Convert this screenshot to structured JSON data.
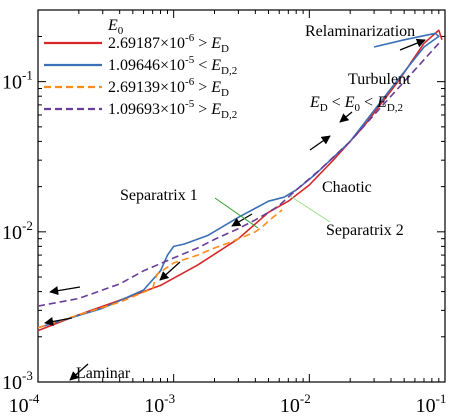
{
  "chart_data": {
    "type": "line",
    "xscale": "log",
    "yscale": "log",
    "xlim": [
      0.0001,
      0.1
    ],
    "ylim": [
      0.001,
      0.3
    ],
    "x_ticks": [
      {
        "value": 0.0001,
        "base": "10",
        "exp": "-4"
      },
      {
        "value": 0.001,
        "base": "10",
        "exp": "-3"
      },
      {
        "value": 0.01,
        "base": "10",
        "exp": "-2"
      },
      {
        "value": 0.1,
        "base": "10",
        "exp": "-1"
      }
    ],
    "y_ticks": [
      {
        "value": 0.001,
        "base": "10",
        "exp": "-3"
      },
      {
        "value": 0.01,
        "base": "10",
        "exp": "-2"
      },
      {
        "value": 0.1,
        "base": "10",
        "exp": "-1"
      }
    ],
    "grid": false,
    "legend": {
      "position": "top-left",
      "title": "E0",
      "entries": [
        {
          "coef": "2.69187",
          "exp": "-6",
          "rel": ">",
          "sym": "ED",
          "sub": "",
          "color": "#d62728",
          "dash": "solid"
        },
        {
          "coef": "1.09646",
          "exp": "-5",
          "rel": "<",
          "sym": "ED,2",
          "sub": "",
          "color": "#3b6fb6",
          "dash": "solid"
        },
        {
          "coef": "2.69139",
          "exp": "-6",
          "rel": ">",
          "sym": "ED",
          "sub": "",
          "color": "#ff8c1a",
          "dash": "dashed"
        },
        {
          "coef": "1.09693",
          "exp": "-5",
          "rel": ">",
          "sym": "ED,2",
          "sub": "",
          "color": "#6a3d9a",
          "dash": "dashed"
        }
      ]
    },
    "series": [
      {
        "color": "#d62728",
        "dash": "solid",
        "x": [
          0.0001,
          0.0002,
          0.0004,
          0.0008,
          0.0015,
          0.003,
          0.005,
          0.007,
          0.01,
          0.015,
          0.025,
          0.045,
          0.07,
          0.09,
          0.095
        ],
        "y": [
          0.0022,
          0.0028,
          0.0035,
          0.0044,
          0.006,
          0.009,
          0.0135,
          0.016,
          0.0205,
          0.03,
          0.05,
          0.1,
          0.18,
          0.22,
          0.19
        ]
      },
      {
        "color": "#3b6fb6",
        "dash": "solid",
        "x": [
          0.0001,
          0.0003,
          0.0006,
          0.0008,
          0.0009,
          0.001,
          0.0012,
          0.0018,
          0.003,
          0.005,
          0.0065,
          0.008,
          0.011,
          0.02,
          0.04,
          0.07,
          0.09,
          0.085,
          0.05,
          0.03
        ],
        "y": [
          0.0023,
          0.0031,
          0.0041,
          0.0055,
          0.007,
          0.008,
          0.0083,
          0.0095,
          0.0125,
          0.016,
          0.017,
          0.019,
          0.024,
          0.04,
          0.09,
          0.17,
          0.2,
          0.21,
          0.19,
          0.17
        ]
      },
      {
        "color": "#ff8c1a",
        "dash": "dashed",
        "x": [
          0.0001,
          0.0002,
          0.0004,
          0.0007,
          0.00075,
          0.001,
          0.0015,
          0.002,
          0.0025,
          0.003,
          0.0035,
          0.004,
          0.0045,
          0.005,
          0.006,
          0.0063
        ],
        "y": [
          0.0023,
          0.0028,
          0.0034,
          0.0042,
          0.0052,
          0.0062,
          0.007,
          0.0078,
          0.0084,
          0.009,
          0.0095,
          0.01,
          0.0108,
          0.0118,
          0.0135,
          0.014
        ]
      },
      {
        "color": "#6a3d9a",
        "dash": "dashed",
        "x": [
          0.0001,
          0.0002,
          0.0004,
          0.0006,
          0.001,
          0.0015,
          0.002,
          0.003,
          0.004,
          0.005,
          0.006,
          0.008,
          0.012,
          0.02,
          0.035,
          0.06,
          0.09
        ],
        "y": [
          0.0032,
          0.0036,
          0.0045,
          0.0055,
          0.0067,
          0.0078,
          0.0089,
          0.0105,
          0.012,
          0.0135,
          0.015,
          0.019,
          0.026,
          0.04,
          0.07,
          0.12,
          0.18
        ]
      }
    ],
    "annotations": [
      {
        "id": "relaminarization",
        "text": "Relaminarization"
      },
      {
        "id": "turbulent",
        "text": "Turbulent"
      },
      {
        "id": "chaotic",
        "text": "Chaotic"
      },
      {
        "id": "separatrix1",
        "text": "Separatrix 1"
      },
      {
        "id": "separatrix2",
        "text": "Separatrix 2"
      },
      {
        "id": "laminar",
        "text": "Laminar"
      }
    ],
    "turbulent_condition": "ED < E0 < ED,2"
  }
}
